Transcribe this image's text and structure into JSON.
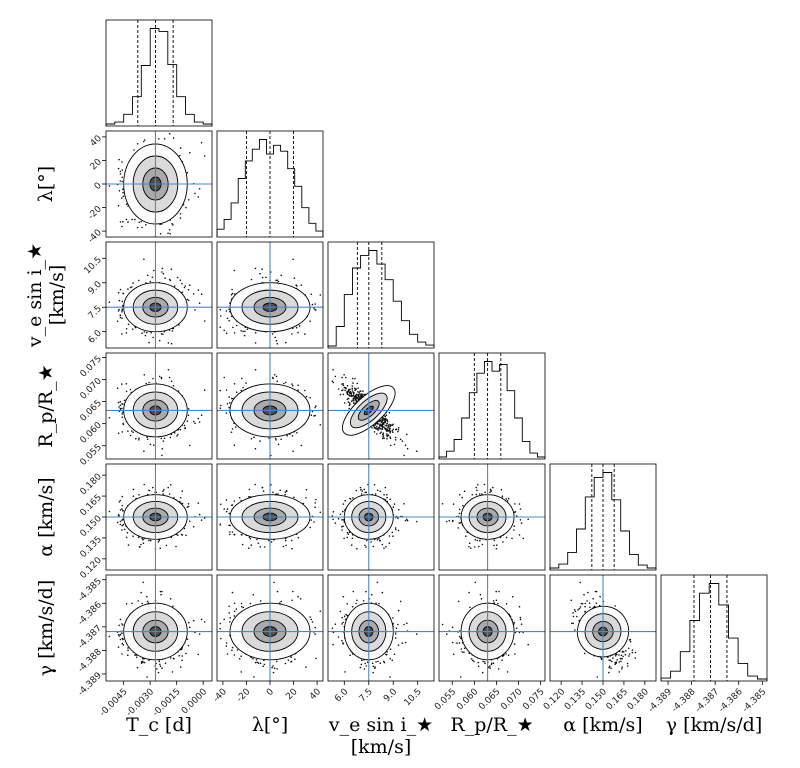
{
  "chart_data": {
    "type": "corner",
    "parameters": [
      {
        "key": "Tc",
        "label": "T_c [d]",
        "label_lines": [
          "T_c [d]"
        ],
        "range": [
          -0.0055,
          0.0005
        ],
        "ticks": [
          "-0.0045",
          "-0.0030",
          "-0.0015",
          "0.0000"
        ],
        "tick_values": [
          -0.0045,
          -0.003,
          -0.0015,
          0.0
        ],
        "truth": -0.0027,
        "median": -0.0027,
        "q16": -0.0037,
        "q84": -0.0017,
        "sigma": 0.0009,
        "shape": "gauss",
        "hist": [
          0.02,
          0.04,
          0.12,
          0.3,
          0.62,
          1.0,
          0.97,
          0.63,
          0.3,
          0.12,
          0.04,
          0.02
        ]
      },
      {
        "key": "lambda",
        "label": "λ[°]",
        "label_lines": [
          "λ[°]"
        ],
        "range": [
          -45,
          45
        ],
        "ticks": [
          "-40",
          "-20",
          "0",
          "20",
          "40"
        ],
        "tick_values": [
          -40,
          -20,
          0,
          20,
          40
        ],
        "truth": 0,
        "median": 0,
        "q16": -20,
        "q84": 20,
        "sigma": 17,
        "shape": "wide",
        "hist": [
          0.08,
          0.18,
          0.35,
          0.6,
          0.78,
          0.9,
          1.0,
          0.85,
          0.94,
          0.88,
          0.7,
          0.52,
          0.3,
          0.14,
          0.06
        ]
      },
      {
        "key": "vsini",
        "label": "v_e sin i_★ [km/s]",
        "label_lines": [
          "v_e sin i_★",
          "[km/s]"
        ],
        "range": [
          5.0,
          11.5
        ],
        "ticks": [
          "6.0",
          "7.5",
          "9.0",
          "10.5"
        ],
        "tick_values": [
          6.0,
          7.5,
          9.0,
          10.5
        ],
        "truth": 7.5,
        "median": 7.5,
        "q16": 6.8,
        "q84": 8.3,
        "sigma": 0.75,
        "shape": "skew",
        "hist": [
          0.02,
          0.22,
          0.55,
          0.82,
          0.95,
          1.0,
          0.86,
          0.7,
          0.48,
          0.28,
          0.14,
          0.06,
          0.03
        ]
      },
      {
        "key": "rprs",
        "label": "R_p/R_★",
        "label_lines": [
          "R_p/R_★"
        ],
        "range": [
          0.052,
          0.076
        ],
        "ticks": [
          "0.055",
          "0.060",
          "0.065",
          "0.070",
          "0.075"
        ],
        "tick_values": [
          0.055,
          0.06,
          0.065,
          0.07,
          0.075
        ],
        "truth": 0.063,
        "median": 0.063,
        "q16": 0.06,
        "q84": 0.066,
        "sigma": 0.003,
        "shape": "gauss",
        "hist": [
          0.02,
          0.08,
          0.2,
          0.42,
          0.68,
          0.88,
          1.0,
          0.9,
          0.97,
          0.7,
          0.42,
          0.18,
          0.06,
          0.02
        ]
      },
      {
        "key": "alpha",
        "label": "α [km/s]",
        "label_lines": [
          "α [km/s]"
        ],
        "range": [
          0.112,
          0.188
        ],
        "ticks": [
          "0.120",
          "0.135",
          "0.150",
          "0.165",
          "0.180"
        ],
        "tick_values": [
          0.12,
          0.135,
          0.15,
          0.165,
          0.18
        ],
        "truth": 0.15,
        "median": 0.15,
        "q16": 0.142,
        "q84": 0.158,
        "sigma": 0.008,
        "shape": "gauss",
        "hist": [
          0.02,
          0.06,
          0.18,
          0.42,
          0.75,
          0.95,
          1.0,
          0.72,
          0.4,
          0.16,
          0.05,
          0.02
        ]
      },
      {
        "key": "gamma",
        "label": "γ [km/s/d]",
        "label_lines": [
          "γ [km/s/d]"
        ],
        "range": [
          -4.3893,
          -4.3848
        ],
        "ticks": [
          "-4.389",
          "-4.388",
          "-4.387",
          "-4.386",
          "-4.385"
        ],
        "tick_values": [
          -4.389,
          -4.388,
          -4.387,
          -4.386,
          -4.385
        ],
        "truth": -4.3872,
        "median": -4.3872,
        "q16": -4.3879,
        "q84": -4.3865,
        "sigma": 0.0006,
        "shape": "gauss",
        "hist": [
          0.03,
          0.1,
          0.3,
          0.62,
          0.9,
          1.0,
          0.78,
          0.44,
          0.18,
          0.05,
          0.02
        ]
      }
    ],
    "correlations": {
      "3-2": -0.85,
      "5-4": -0.45
    },
    "samples_shown_per_panel": 650,
    "colors": {
      "truth": "#4f87c1",
      "frame": "#000000",
      "contour_fill": "#9a9a9a"
    }
  }
}
